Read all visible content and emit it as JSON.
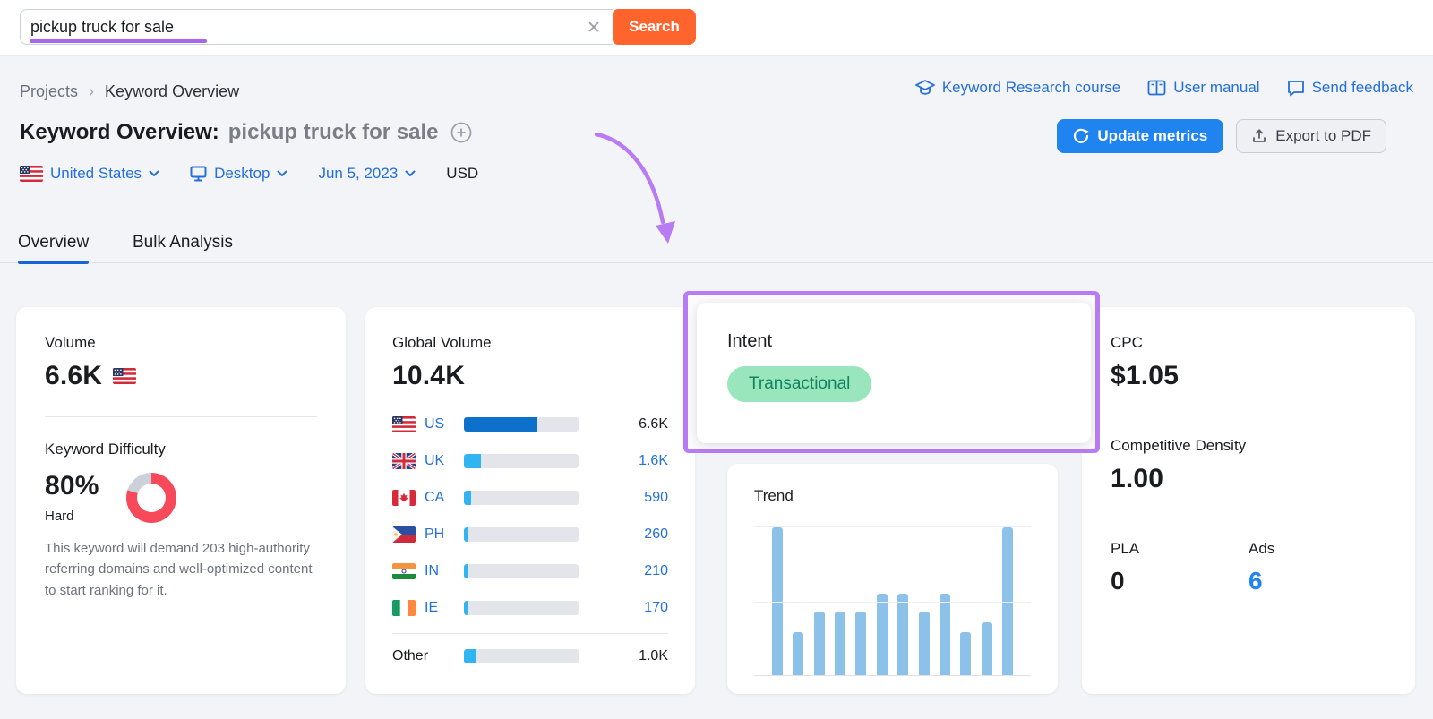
{
  "search": {
    "value": "pickup truck for sale",
    "button_label": "Search",
    "clear_icon": "✕"
  },
  "breadcrumb": {
    "parent": "Projects",
    "current": "Keyword Overview",
    "separator": "›"
  },
  "header_links": {
    "course": "Keyword Research course",
    "manual": "User manual",
    "feedback": "Send feedback"
  },
  "title": {
    "prefix": "Keyword Overview:",
    "keyword": "pickup truck for sale"
  },
  "actions": {
    "update": "Update metrics",
    "export": "Export to PDF"
  },
  "filters": {
    "country": "United States",
    "device": "Desktop",
    "date": "Jun 5, 2023",
    "currency": "USD"
  },
  "tabs": {
    "overview": "Overview",
    "bulk": "Bulk Analysis"
  },
  "volume_card": {
    "label": "Volume",
    "value": "6.6K",
    "kd_label": "Keyword Difficulty",
    "kd_value": "80%",
    "kd_percent": 80,
    "kd_level": "Hard",
    "kd_description": "This keyword will demand 203 high-authority referring domains and well-optimized content to start ranking for it."
  },
  "global_volume_card": {
    "label": "Global Volume",
    "value": "10.4K",
    "rows": [
      {
        "flag": "us",
        "code": "US",
        "value": "6.6K",
        "bar_percent": 64,
        "bar_color": "#0d71cb",
        "link": false
      },
      {
        "flag": "uk",
        "code": "UK",
        "value": "1.6K",
        "bar_percent": 15,
        "bar_color": "#31b4f2",
        "link": true
      },
      {
        "flag": "ca",
        "code": "CA",
        "value": "590",
        "bar_percent": 6,
        "bar_color": "#31b4f2",
        "link": true
      },
      {
        "flag": "ph",
        "code": "PH",
        "value": "260",
        "bar_percent": 4,
        "bar_color": "#31b4f2",
        "link": true
      },
      {
        "flag": "in",
        "code": "IN",
        "value": "210",
        "bar_percent": 4,
        "bar_color": "#31b4f2",
        "link": true
      },
      {
        "flag": "ie",
        "code": "IE",
        "value": "170",
        "bar_percent": 3.5,
        "bar_color": "#31b4f2",
        "link": true
      }
    ],
    "other_row": {
      "label": "Other",
      "value": "1.0K",
      "bar_percent": 11,
      "bar_color": "#31b4f2",
      "link": false
    }
  },
  "intent_card": {
    "label": "Intent",
    "badge": "Transactional"
  },
  "trend_card": {
    "label": "Trend"
  },
  "chart_data": {
    "type": "bar",
    "title": "Trend",
    "values": [
      100,
      29,
      43,
      43,
      43,
      55,
      55,
      43,
      55,
      29,
      36,
      100
    ],
    "ylim": [
      0,
      100
    ],
    "unit": "relative monthly search volume (%, no axis labels shown)",
    "grid": true,
    "bar_color": "#8cc2ea"
  },
  "cpc_card": {
    "label": "CPC",
    "value": "$1.05",
    "cd_label": "Competitive Density",
    "cd_value": "1.00",
    "pla_label": "PLA",
    "pla_value": "0",
    "ads_label": "Ads",
    "ads_value": "6"
  },
  "colors": {
    "accent_orange": "#ff642d",
    "link_blue": "#2470da",
    "button_blue": "#1f83f0",
    "kd_red": "#f7495a",
    "kd_rest_gray": "#ccd0d8",
    "badge_green_bg": "#99e6bc",
    "badge_green_text": "#11835f",
    "annotation_purple": "#b87bf3",
    "underline_purple": "#a666ef",
    "trend_bar_blue": "#8cc2ea",
    "us_bar_blue": "#0d71cb",
    "country_bar_blue": "#31b4f2"
  }
}
